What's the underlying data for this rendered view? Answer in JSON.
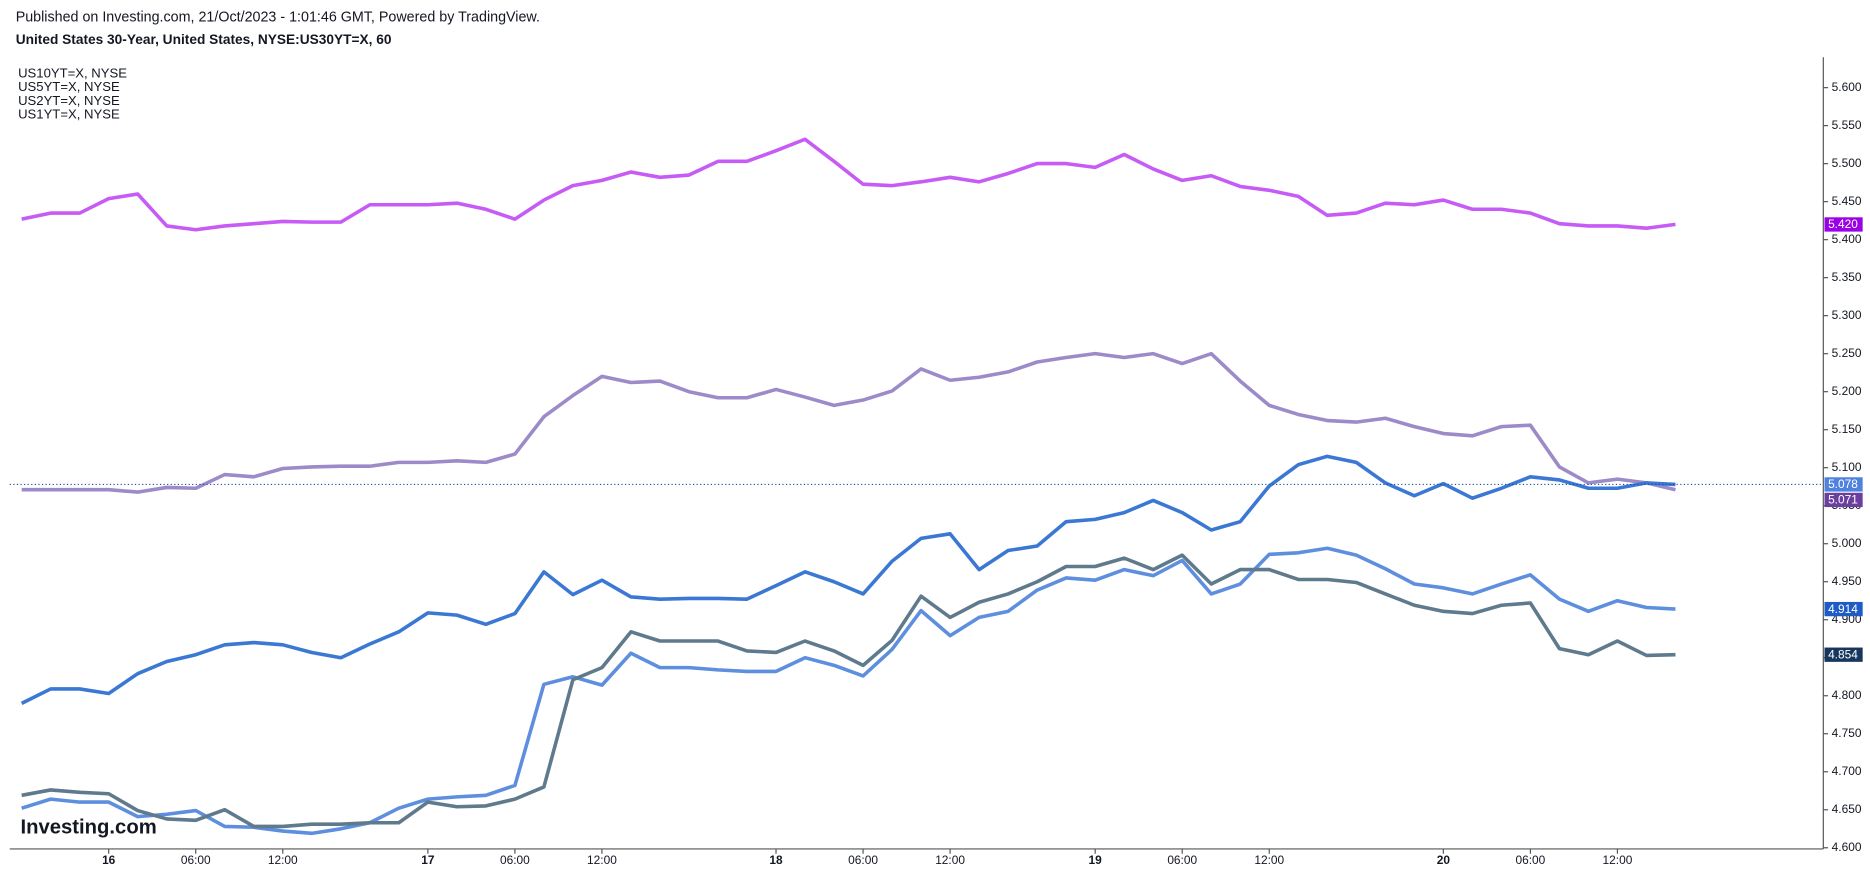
{
  "chart_data": {
    "type": "line",
    "published": "Published on Investing.com, 21/Oct/2023 - 1:01:46 GMT, Powered by TradingView.",
    "title": "United States 30-Year, United States, NYSE:US30YT=X, 60",
    "logo": "Investing.com",
    "categories": [
      null,
      null,
      null,
      "16",
      null,
      null,
      "06:00",
      null,
      null,
      "12:00",
      null,
      null,
      null,
      null,
      "17",
      null,
      null,
      "06:00",
      null,
      null,
      "12:00",
      null,
      null,
      null,
      null,
      null,
      "18",
      null,
      null,
      "06:00",
      null,
      null,
      "12:00",
      null,
      null,
      null,
      null,
      "19",
      null,
      null,
      "06:00",
      null,
      null,
      "12:00",
      null,
      null,
      null,
      null,
      null,
      "20",
      null,
      null,
      "06:00",
      null,
      null,
      "12:00",
      null,
      null
    ],
    "day_labels": [
      "16",
      "17",
      "18",
      "19",
      "20"
    ],
    "ylim": [
      4.6,
      5.64
    ],
    "yticks": [
      {
        "value": 4.6,
        "label": "4.600"
      },
      {
        "value": 4.65,
        "label": "4.650"
      },
      {
        "value": 4.7,
        "label": "4.700"
      },
      {
        "value": 4.75,
        "label": "4.750"
      },
      {
        "value": 4.8,
        "label": "4.800"
      },
      {
        "value": 4.85,
        "label": "4.850"
      },
      {
        "value": 4.9,
        "label": "4.900"
      },
      {
        "value": 4.95,
        "label": "4.950"
      },
      {
        "value": 5.0,
        "label": "5.000"
      },
      {
        "value": 5.05,
        "label": "5.050"
      },
      {
        "value": 5.1,
        "label": "5.100"
      },
      {
        "value": 5.15,
        "label": "5.150"
      },
      {
        "value": 5.2,
        "label": "5.200"
      },
      {
        "value": 5.25,
        "label": "5.250"
      },
      {
        "value": 5.3,
        "label": "5.300"
      },
      {
        "value": 5.35,
        "label": "5.350"
      },
      {
        "value": 5.4,
        "label": "5.400"
      },
      {
        "value": 5.45,
        "label": "5.450"
      },
      {
        "value": 5.5,
        "label": "5.500"
      },
      {
        "value": 5.55,
        "label": "5.550"
      },
      {
        "value": 5.6,
        "label": "5.600"
      }
    ],
    "main_series": {
      "color": "#3a78d4",
      "label_color": "#4f82de",
      "last_label": "5.078",
      "values": [
        4.79,
        4.809,
        4.809,
        4.803,
        4.829,
        4.845,
        4.854,
        4.867,
        4.87,
        4.867,
        4.857,
        4.85,
        4.868,
        4.884,
        4.909,
        4.906,
        4.894,
        4.908,
        4.963,
        4.933,
        4.952,
        4.93,
        4.927,
        4.928,
        4.928,
        4.927,
        4.945,
        4.963,
        4.95,
        4.934,
        4.977,
        5.007,
        5.013,
        4.966,
        4.991,
        4.997,
        5.029,
        5.032,
        5.041,
        5.057,
        5.041,
        5.018,
        5.029,
        5.076,
        5.104,
        5.115,
        5.107,
        5.08,
        5.063,
        5.079,
        5.06,
        5.073,
        5.088,
        5.084,
        5.073,
        5.073,
        5.08,
        5.078
      ]
    },
    "series": [
      {
        "name": "US10YT=X, NYSE",
        "color": "#5e8fde",
        "label_color": "#1d5cc4",
        "last_label": "4.914",
        "values": [
          4.652,
          4.664,
          4.66,
          4.66,
          4.641,
          4.644,
          4.649,
          4.628,
          4.627,
          4.622,
          4.619,
          4.625,
          4.633,
          4.652,
          4.664,
          4.667,
          4.669,
          4.682,
          4.815,
          4.825,
          4.814,
          4.856,
          4.837,
          4.837,
          4.834,
          4.832,
          4.832,
          4.85,
          4.84,
          4.826,
          4.861,
          4.912,
          4.879,
          4.903,
          4.911,
          4.939,
          4.955,
          4.952,
          4.966,
          4.958,
          4.978,
          4.934,
          4.947,
          4.986,
          4.988,
          4.994,
          4.985,
          4.967,
          4.947,
          4.942,
          4.934,
          4.947,
          4.959,
          4.927,
          4.911,
          4.925,
          4.916,
          4.914
        ]
      },
      {
        "name": "US5YT=X, NYSE",
        "color": "#5f7a8c",
        "label_color": "#17365d",
        "last_label": "4.854",
        "values": [
          4.669,
          4.676,
          4.673,
          4.671,
          4.649,
          4.638,
          4.636,
          4.65,
          4.628,
          4.628,
          4.631,
          4.631,
          4.633,
          4.633,
          4.66,
          4.654,
          4.655,
          4.664,
          4.68,
          4.821,
          4.837,
          4.884,
          4.872,
          4.872,
          4.872,
          4.859,
          4.857,
          4.872,
          4.859,
          4.84,
          4.873,
          4.931,
          4.903,
          4.923,
          4.934,
          4.95,
          4.97,
          4.97,
          4.981,
          4.966,
          4.985,
          4.947,
          4.966,
          4.966,
          4.953,
          4.953,
          4.949,
          4.934,
          4.919,
          4.911,
          4.908,
          4.919,
          4.922,
          4.862,
          4.854,
          4.872,
          4.853,
          4.854
        ]
      },
      {
        "name": "US2YT=X, NYSE",
        "color": "#9d8bc9",
        "label_color": "#6b3fa0",
        "last_label": "5.071",
        "values": [
          5.071,
          5.071,
          5.071,
          5.071,
          5.068,
          5.074,
          5.073,
          5.091,
          5.088,
          5.099,
          5.101,
          5.102,
          5.102,
          5.107,
          5.107,
          5.109,
          5.107,
          5.118,
          5.167,
          5.195,
          5.22,
          5.212,
          5.214,
          5.2,
          5.192,
          5.192,
          5.203,
          5.193,
          5.182,
          5.189,
          5.201,
          5.23,
          5.215,
          5.219,
          5.226,
          5.239,
          5.245,
          5.25,
          5.245,
          5.25,
          5.237,
          5.25,
          5.214,
          5.182,
          5.17,
          5.162,
          5.16,
          5.165,
          5.154,
          5.145,
          5.142,
          5.154,
          5.156,
          5.101,
          5.08,
          5.085,
          5.08,
          5.071
        ]
      },
      {
        "name": "US1YT=X, NYSE",
        "color": "#c65cf5",
        "label_color": "#9b00e6",
        "last_label": "5.420",
        "values": [
          5.427,
          5.435,
          5.435,
          5.454,
          5.46,
          5.418,
          5.413,
          5.418,
          5.421,
          5.424,
          5.423,
          5.423,
          5.446,
          5.446,
          5.446,
          5.448,
          5.44,
          5.427,
          5.452,
          5.471,
          5.478,
          5.489,
          5.482,
          5.485,
          5.503,
          5.503,
          5.517,
          5.532,
          5.503,
          5.473,
          5.471,
          5.476,
          5.482,
          5.476,
          5.487,
          5.5,
          5.5,
          5.495,
          5.512,
          5.493,
          5.478,
          5.484,
          5.47,
          5.465,
          5.457,
          5.432,
          5.435,
          5.448,
          5.446,
          5.452,
          5.44,
          5.44,
          5.435,
          5.421,
          5.418,
          5.418,
          5.415,
          5.42
        ]
      }
    ]
  }
}
